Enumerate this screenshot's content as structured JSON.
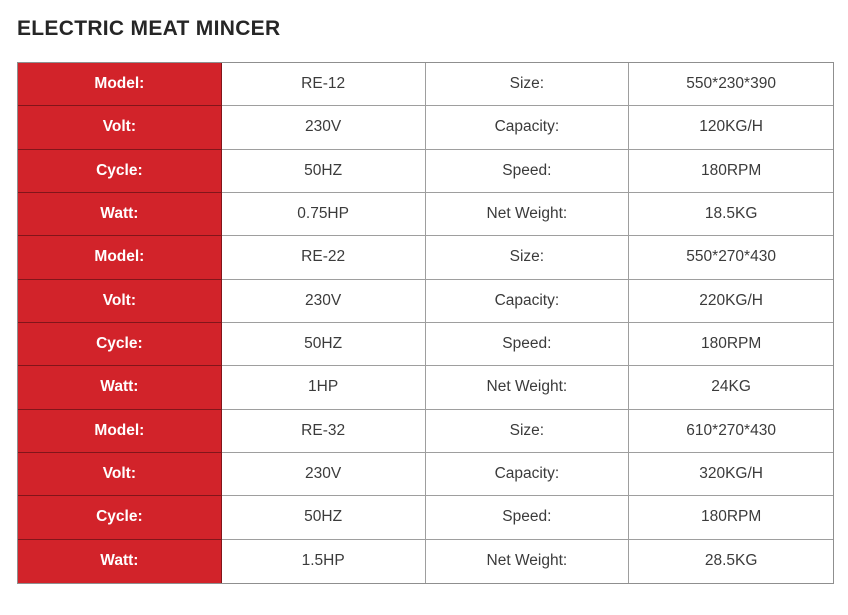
{
  "title": "ELECTRIC MEAT MINCER",
  "colors": {
    "accent_red": "#d2232a",
    "border_gray": "#8f8f8f",
    "title_text": "#262626",
    "cell_text": "#3b3b3b",
    "red_cell_text": "#ffffff",
    "background": "#ffffff"
  },
  "specs": {
    "rows": [
      [
        "Model:",
        "RE-12",
        "Size:",
        "550*230*390"
      ],
      [
        "Volt:",
        "230V",
        "Capacity:",
        "120KG/H"
      ],
      [
        "Cycle:",
        "50HZ",
        "Speed:",
        "180RPM"
      ],
      [
        "Watt:",
        "0.75HP",
        "Net Weight:",
        "18.5KG"
      ],
      [
        "Model:",
        "RE-22",
        "Size:",
        "550*270*430"
      ],
      [
        "Volt:",
        "230V",
        "Capacity:",
        "220KG/H"
      ],
      [
        "Cycle:",
        "50HZ",
        "Speed:",
        "180RPM"
      ],
      [
        "Watt:",
        "1HP",
        "Net Weight:",
        "24KG"
      ],
      [
        "Model:",
        "RE-32",
        "Size:",
        "610*270*430"
      ],
      [
        "Volt:",
        "230V",
        "Capacity:",
        "320KG/H"
      ],
      [
        "Cycle:",
        "50HZ",
        "Speed:",
        "180RPM"
      ],
      [
        "Watt:",
        "1.5HP",
        "Net Weight:",
        "28.5KG"
      ]
    ]
  }
}
